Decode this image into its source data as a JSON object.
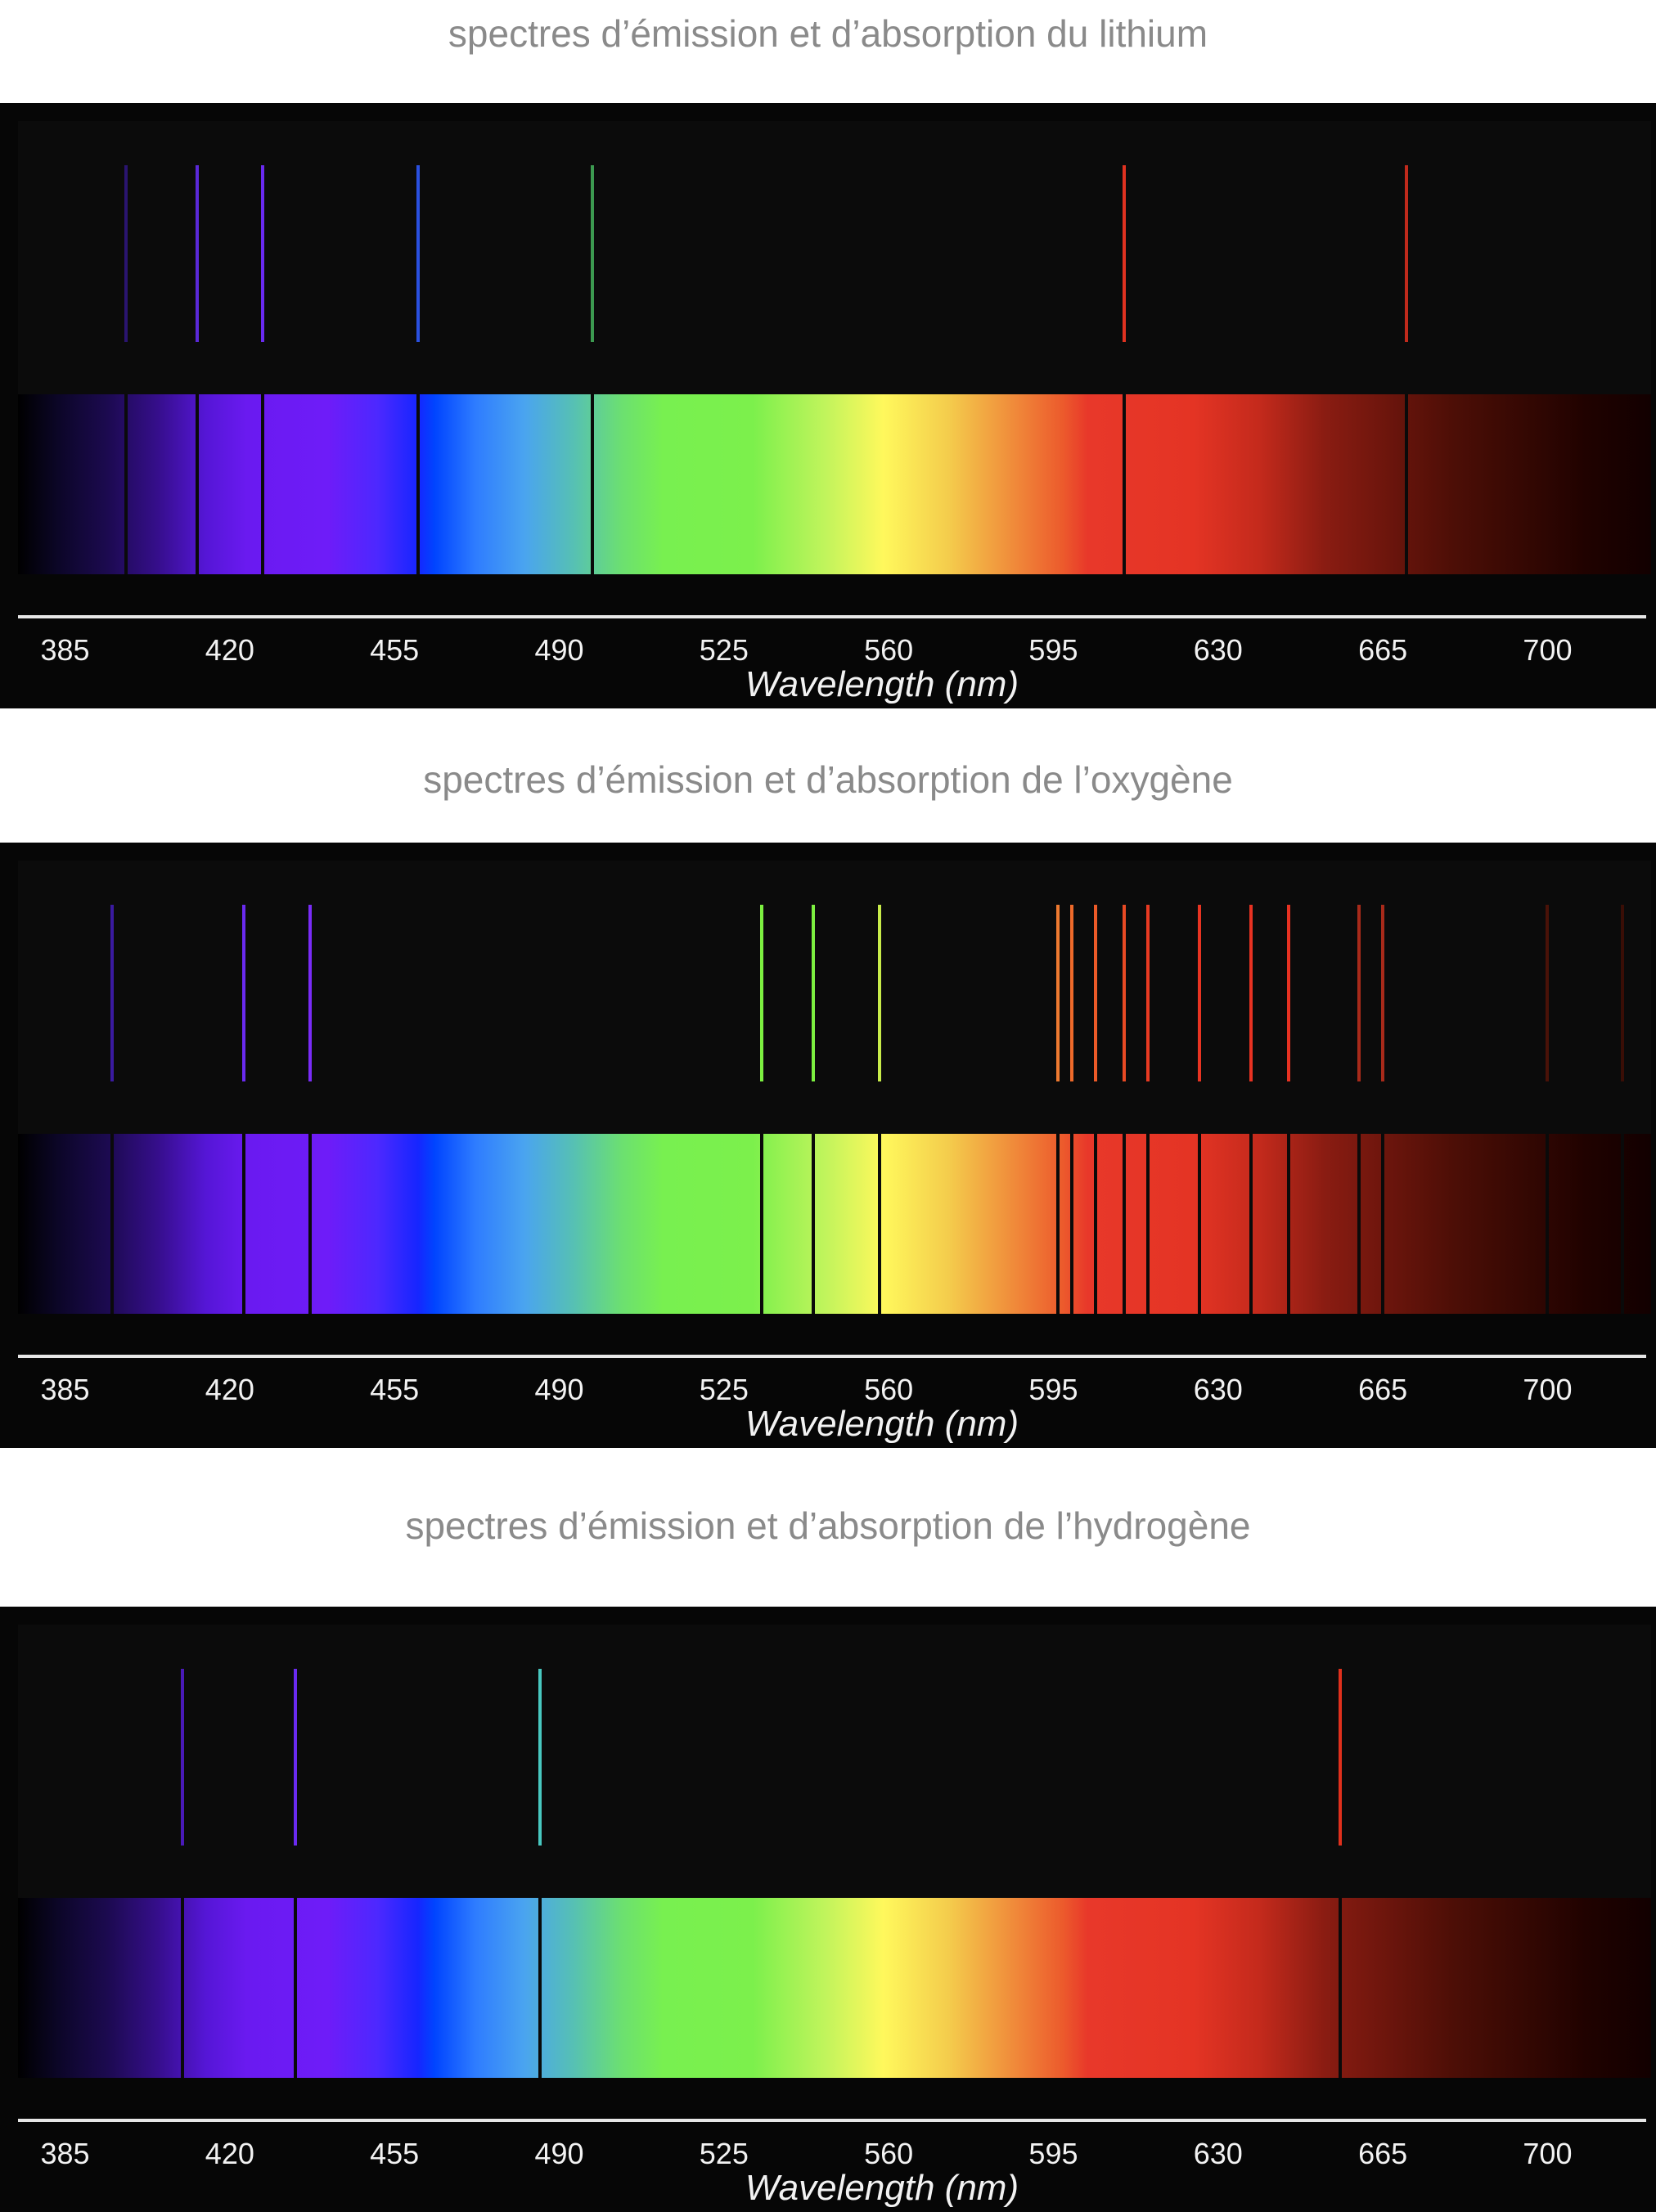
{
  "chart_data": [
    {
      "type": "spectrum",
      "title": "spectres d’émission et d’absorption du lithium",
      "xlabel": "Wavelength (nm)",
      "xlim": [
        375,
        722
      ],
      "xticks": [
        "385",
        "420",
        "455",
        "490",
        "525",
        "560",
        "595",
        "630",
        "665",
        "700"
      ],
      "lines": [
        {
          "wavelength": 398,
          "color": "#2a1470"
        },
        {
          "wavelength": 413,
          "color": "#5a28d8"
        },
        {
          "wavelength": 427,
          "color": "#6a2af0"
        },
        {
          "wavelength": 460,
          "color": "#2a50e0"
        },
        {
          "wavelength": 497,
          "color": "#3c9a50"
        },
        {
          "wavelength": 610,
          "color": "#e03220"
        },
        {
          "wavelength": 670,
          "color": "#c02a1c"
        }
      ]
    },
    {
      "type": "spectrum",
      "title": "spectres d’émission et d’absorption de l’oxygène",
      "xlabel": "Wavelength (nm)",
      "xlim": [
        375,
        722
      ],
      "xticks": [
        "385",
        "420",
        "455",
        "490",
        "525",
        "560",
        "595",
        "630",
        "665",
        "700"
      ],
      "lines": [
        {
          "wavelength": 395,
          "color": "#3a1aa0"
        },
        {
          "wavelength": 423,
          "color": "#6a2af0"
        },
        {
          "wavelength": 437,
          "color": "#7a2cf8"
        },
        {
          "wavelength": 533,
          "color": "#7cf040"
        },
        {
          "wavelength": 544,
          "color": "#7cf040"
        },
        {
          "wavelength": 558,
          "color": "#c8ec4a"
        },
        {
          "wavelength": 596,
          "color": "#ee7a30"
        },
        {
          "wavelength": 599,
          "color": "#ee6a2a"
        },
        {
          "wavelength": 604,
          "color": "#ec5a28"
        },
        {
          "wavelength": 610,
          "color": "#e84a24"
        },
        {
          "wavelength": 615,
          "color": "#e83a22"
        },
        {
          "wavelength": 626,
          "color": "#e83422"
        },
        {
          "wavelength": 637,
          "color": "#e83222"
        },
        {
          "wavelength": 645,
          "color": "#e83222"
        },
        {
          "wavelength": 660,
          "color": "#a82a1a"
        },
        {
          "wavelength": 665,
          "color": "#a82a1a"
        },
        {
          "wavelength": 700,
          "color": "#4a1208"
        },
        {
          "wavelength": 716,
          "color": "#3a0e06"
        }
      ]
    },
    {
      "type": "spectrum",
      "title": "spectres d’émission et d’absorption de l’hydrogène",
      "xlabel": "Wavelength (nm)",
      "xlim": [
        375,
        722
      ],
      "xticks": [
        "385",
        "420",
        "455",
        "490",
        "525",
        "560",
        "595",
        "630",
        "665",
        "700"
      ],
      "lines": [
        {
          "wavelength": 410,
          "color": "#4a1ab8"
        },
        {
          "wavelength": 434,
          "color": "#6a2af0"
        },
        {
          "wavelength": 486,
          "color": "#48c8c0"
        },
        {
          "wavelength": 656,
          "color": "#e0301c"
        }
      ]
    }
  ]
}
